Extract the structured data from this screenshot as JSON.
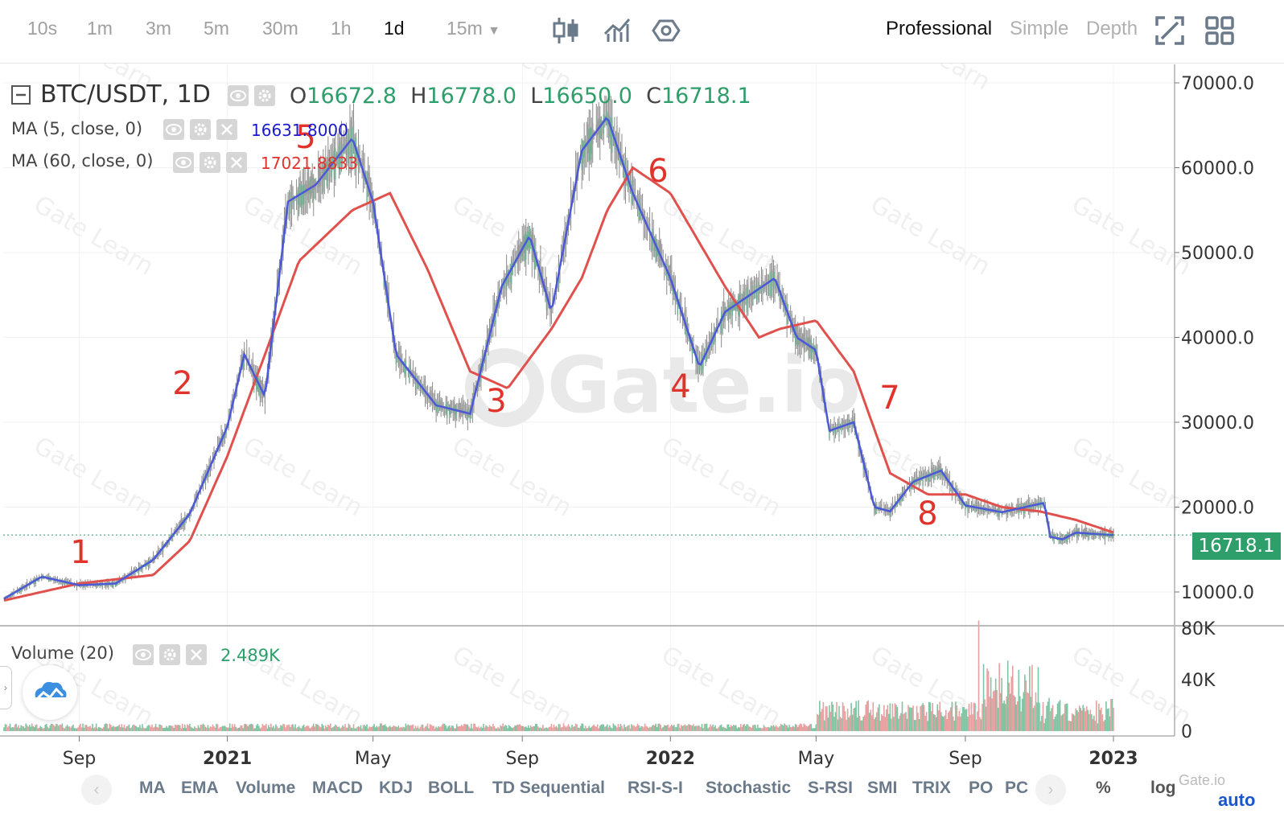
{
  "toolbar": {
    "timeframes": [
      "10s",
      "1m",
      "3m",
      "5m",
      "30m",
      "1h",
      "1d",
      "15m"
    ],
    "active_timeframe": "1d",
    "modes": [
      "Professional",
      "Simple",
      "Depth"
    ],
    "active_mode": "Professional"
  },
  "legend": {
    "symbol": "BTC/USDT, 1D",
    "open_label": "O",
    "open": "16672.8",
    "high_label": "H",
    "high": "16778.0",
    "low_label": "L",
    "low": "16650.0",
    "close_label": "C",
    "close": "16718.1",
    "ma5_label": "MA (5, close, 0)",
    "ma5_value": "16631.8000",
    "ma60_label": "MA (60, close, 0)",
    "ma60_value": "17021.8833",
    "volume_label": "Volume (20)",
    "volume_value": "2.489K"
  },
  "last_price": "16718.1",
  "watermark": "Gate.io",
  "watermark_small": "Gate Learn",
  "annotations": [
    "1",
    "2",
    "3",
    "4",
    "5",
    "6",
    "7",
    "8"
  ],
  "price_axis": [
    "70000.0",
    "60000.0",
    "50000.0",
    "40000.0",
    "30000.0",
    "20000.0",
    "10000.0"
  ],
  "volume_axis": [
    "80K",
    "40K",
    "0"
  ],
  "time_axis": [
    "Sep",
    "2021",
    "May",
    "Sep",
    "2022",
    "May",
    "Sep",
    "2023"
  ],
  "bottom_bar": {
    "indicators": [
      "MA",
      "EMA",
      "Volume",
      "MACD",
      "KDJ",
      "BOLL",
      "TD Sequential",
      "RSI-S-I",
      "Stochastic",
      "S-RSI",
      "SMI",
      "TRIX",
      "PO",
      "PC"
    ],
    "percent": "%",
    "log": "log",
    "auto": "auto"
  },
  "colors": {
    "ma5": "#4b59d6",
    "ma60": "#e0504c",
    "up": "#2e9e6b",
    "candle": "#8a8a8a",
    "annotation": "#e0332c"
  },
  "chart_data": {
    "type": "line",
    "title": "BTC/USDT, 1D",
    "xlabel": "",
    "ylabel": "",
    "x_ticks": [
      "Sep",
      "2021",
      "May",
      "Sep",
      "2022",
      "May",
      "Sep",
      "2023"
    ],
    "ylim": [
      5000,
      72000
    ],
    "y_ticks": [
      70000,
      60000,
      50000,
      40000,
      30000,
      20000,
      10000
    ],
    "grid": true,
    "series": [
      {
        "name": "MA (5, close, 0)",
        "x": [
          "2020-07-01",
          "2020-08-01",
          "2020-09-01",
          "2020-10-01",
          "2020-11-01",
          "2020-12-01",
          "2021-01-01",
          "2021-01-15",
          "2021-02-01",
          "2021-02-20",
          "2021-03-15",
          "2021-04-14",
          "2021-05-01",
          "2021-05-20",
          "2021-06-22",
          "2021-07-20",
          "2021-08-15",
          "2021-09-07",
          "2021-09-25",
          "2021-10-20",
          "2021-11-10",
          "2021-12-01",
          "2022-01-01",
          "2022-01-25",
          "2022-02-15",
          "2022-03-28",
          "2022-04-15",
          "2022-05-01",
          "2022-05-12",
          "2022-06-01",
          "2022-06-18",
          "2022-07-01",
          "2022-07-20",
          "2022-08-12",
          "2022-09-01",
          "2022-10-01",
          "2022-11-05",
          "2022-11-10",
          "2022-11-20",
          "2022-12-01",
          "2022-12-20",
          "2023-01-01"
        ],
        "values": [
          9200,
          11800,
          10800,
          11000,
          13800,
          19200,
          29500,
          38000,
          33000,
          56000,
          58000,
          63500,
          56000,
          38000,
          32000,
          31000,
          46000,
          52000,
          43000,
          62000,
          66000,
          57000,
          47000,
          36500,
          43000,
          47000,
          40000,
          38500,
          29000,
          30000,
          20000,
          19500,
          23000,
          24300,
          20200,
          19400,
          20500,
          16500,
          16200,
          17000,
          16800,
          16700
        ]
      },
      {
        "name": "MA (60, close, 0)",
        "x": [
          "2020-07-01",
          "2020-09-01",
          "2020-11-01",
          "2020-12-01",
          "2021-01-01",
          "2021-02-01",
          "2021-03-01",
          "2021-04-14",
          "2021-05-15",
          "2021-06-15",
          "2021-07-20",
          "2021-08-20",
          "2021-09-25",
          "2021-10-20",
          "2021-11-10",
          "2021-12-01",
          "2022-01-01",
          "2022-02-15",
          "2022-03-15",
          "2022-04-01",
          "2022-05-01",
          "2022-06-01",
          "2022-07-01",
          "2022-08-01",
          "2022-09-01",
          "2022-10-01",
          "2022-11-01",
          "2022-12-01",
          "2023-01-01"
        ],
        "values": [
          9000,
          11000,
          12000,
          16000,
          26000,
          38000,
          49000,
          55000,
          57000,
          48000,
          36000,
          34000,
          41000,
          47000,
          55000,
          60000,
          57000,
          46000,
          40000,
          41000,
          42000,
          36000,
          24000,
          21500,
          21500,
          20000,
          19500,
          18500,
          17000
        ]
      }
    ]
  }
}
